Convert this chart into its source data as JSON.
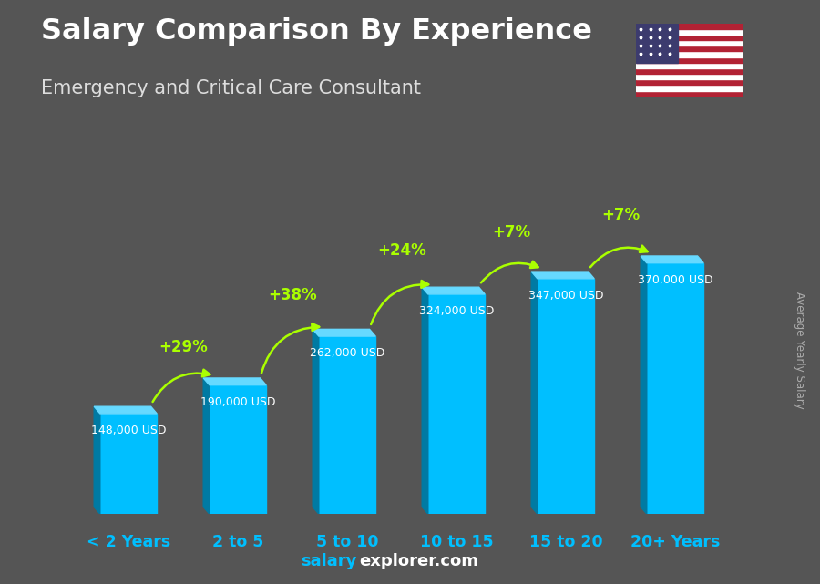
{
  "title_line1": "Salary Comparison By Experience",
  "title_line2": "Emergency and Critical Care Consultant",
  "categories": [
    "< 2 Years",
    "2 to 5",
    "5 to 10",
    "10 to 15",
    "15 to 20",
    "20+ Years"
  ],
  "values": [
    148000,
    190000,
    262000,
    324000,
    347000,
    370000
  ],
  "value_labels": [
    "148,000 USD",
    "190,000 USD",
    "262,000 USD",
    "324,000 USD",
    "347,000 USD",
    "370,000 USD"
  ],
  "pct_changes": [
    "+29%",
    "+38%",
    "+24%",
    "+7%",
    "+7%"
  ],
  "bar_color_main": "#00bfff",
  "bar_color_left": "#007aa3",
  "bar_color_top": "#66d9ff",
  "bg_color": "#555555",
  "title_color": "#ffffff",
  "subtitle_color": "#dddddd",
  "value_label_color": "#ffffff",
  "pct_color": "#aaff00",
  "xlabel_color": "#00bfff",
  "footer_salary_color": "#00bfff",
  "footer_rest_color": "#ffffff",
  "ylabel_text": "Average Yearly Salary",
  "ylabel_color": "#aaaaaa",
  "flag_red": "#B22234",
  "flag_blue": "#3C3B6E",
  "flag_white": "#FFFFFF"
}
